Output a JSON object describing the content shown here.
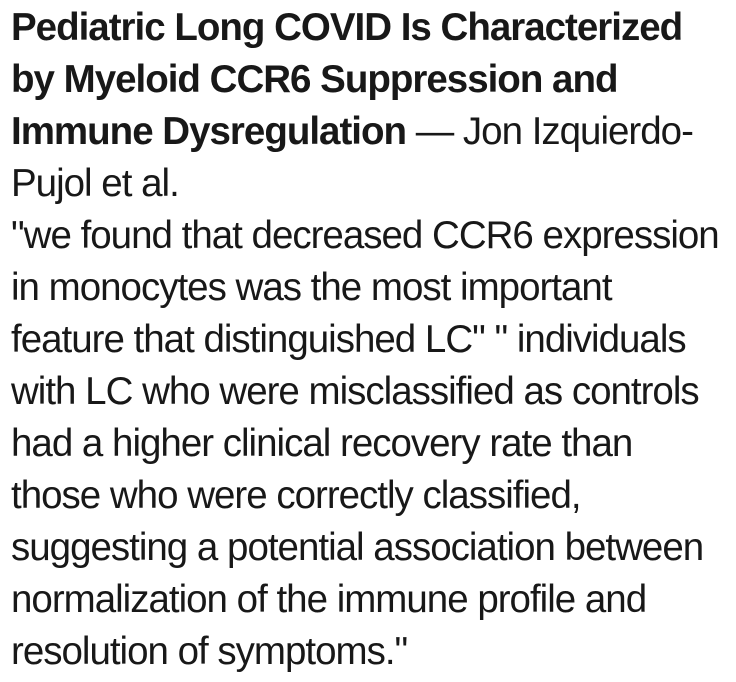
{
  "page": {
    "background_color": "#ffffff",
    "text_color": "#181818"
  },
  "article": {
    "title": "Pediatric Long COVID Is Characterized by Myeloid CCR6 Suppression and Immune Dysregulation",
    "byline": " — Jon Izquierdo-Pujol et al.",
    "quote": "\"we found that decreased CCR6 expression in monocytes was the most important feature that distinguished LC\" \" individuals with LC who were misclassified as controls had a higher clinical recovery rate than those who were correctly classified, suggesting a potential association between normalization of the immune profile and resolution of symptoms.\""
  }
}
